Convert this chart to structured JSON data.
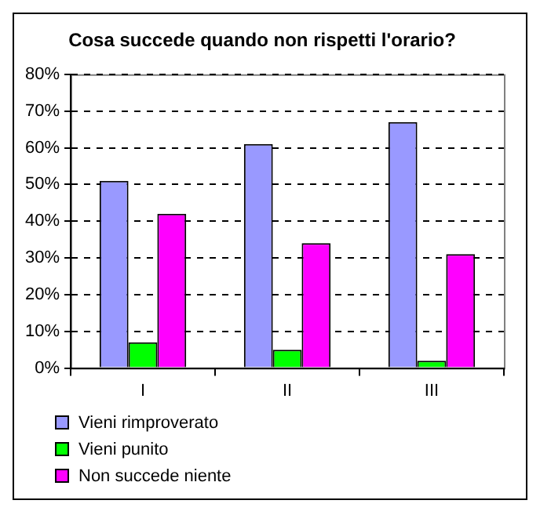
{
  "chart_data": {
    "type": "bar",
    "title": "Cosa succede quando non rispetti l'orario?",
    "categories": [
      "I",
      "II",
      "III"
    ],
    "series": [
      {
        "name": "Vieni rimproverato",
        "color": "#9999ff",
        "values": [
          51,
          61,
          67
        ]
      },
      {
        "name": "Vieni punito",
        "color": "#00ff00",
        "values": [
          7,
          5,
          2
        ]
      },
      {
        "name": "Non succede niente",
        "color": "#ff00ff",
        "values": [
          42,
          34,
          31
        ]
      }
    ],
    "ylim": [
      0,
      80
    ],
    "yticks": [
      {
        "value": 0,
        "label": "0%"
      },
      {
        "value": 10,
        "label": "10%"
      },
      {
        "value": 20,
        "label": "20%"
      },
      {
        "value": 30,
        "label": "30%"
      },
      {
        "value": 40,
        "label": "40%"
      },
      {
        "value": 50,
        "label": "50%"
      },
      {
        "value": 60,
        "label": "60%"
      },
      {
        "value": 70,
        "label": "70%"
      },
      {
        "value": 80,
        "label": "80%"
      }
    ],
    "grid": "y",
    "line_style": "dashed",
    "legend": "bottom"
  }
}
